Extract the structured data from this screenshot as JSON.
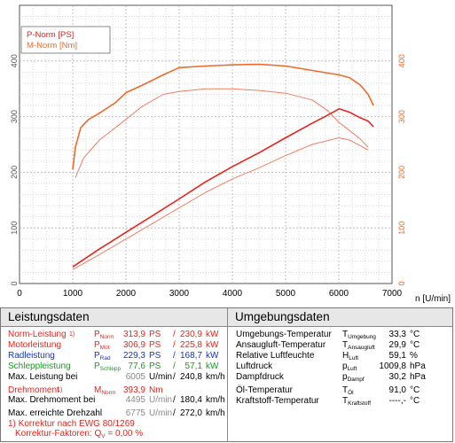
{
  "chart_data": {
    "type": "line",
    "legend": [
      "P-Norm [PS]",
      "M-Norm [Nm]"
    ],
    "legend_position": "top-left",
    "xlabel": "n [U/min]",
    "xlim": [
      0,
      7000
    ],
    "ylim": [
      0,
      500
    ],
    "xticks": [
      "0",
      "1000",
      "2000",
      "3000",
      "4000",
      "5000",
      "6000",
      "7000"
    ],
    "yticks": [
      "0",
      "100",
      "200",
      "300",
      "400"
    ],
    "grid": true,
    "colors": {
      "p_norm": "#e8231b",
      "m_norm": "#ef6a2a",
      "secondary": "#f27d62"
    },
    "series": [
      {
        "name": "P-Norm [PS]",
        "color": "#e8231b",
        "x": [
          1000,
          1500,
          2000,
          2500,
          3000,
          3500,
          4000,
          4500,
          5000,
          5500,
          5800,
          6005,
          6200,
          6400,
          6550,
          6650
        ],
        "y": [
          30,
          62,
          92,
          122,
          152,
          183,
          210,
          235,
          262,
          288,
          303,
          314,
          308,
          298,
          292,
          282
        ]
      },
      {
        "name": "M-Norm [Nm]",
        "color": "#ef6a2a",
        "x": [
          1000,
          1050,
          1150,
          1300,
          1500,
          1800,
          2000,
          2300,
          2700,
          3000,
          3500,
          4000,
          4500,
          5000,
          5500,
          6000,
          6200,
          6400,
          6550,
          6650
        ],
        "y": [
          205,
          245,
          280,
          295,
          306,
          325,
          343,
          356,
          375,
          388,
          391,
          393,
          394,
          391,
          383,
          375,
          370,
          357,
          340,
          320
        ]
      },
      {
        "x": [
          1000,
          1500,
          2000,
          2500,
          3000,
          3500,
          4000,
          4500,
          5000,
          5500,
          6000,
          6200,
          6400,
          6550
        ],
        "y": [
          25,
          52,
          80,
          108,
          136,
          164,
          188,
          208,
          230,
          250,
          262,
          258,
          248,
          240
        ]
      },
      {
        "x": [
          1050,
          1200,
          1500,
          1800,
          2000,
          2300,
          2700,
          3000,
          3500,
          4000,
          4500,
          5000,
          5500,
          5800,
          6000,
          6200,
          6400,
          6550
        ],
        "y": [
          190,
          225,
          258,
          280,
          295,
          318,
          340,
          345,
          350,
          350,
          347,
          342,
          330,
          310,
          290,
          275,
          260,
          245
        ]
      }
    ]
  },
  "left_panel": {
    "title": "Leistungsdaten",
    "rows": [
      {
        "label": "Norm-Leistung",
        "mark": "1)",
        "sym": "P",
        "sub": "Norm",
        "v1": "313,9",
        "u1": "PS",
        "v2": "230,9",
        "u2": "kW"
      },
      {
        "label": "Motorleistung",
        "sym": "P",
        "sub": "Mot",
        "v1": "306,9",
        "u1": "PS",
        "v2": "225,8",
        "u2": "kW"
      },
      {
        "label": "Radleistung",
        "sym": "P",
        "sub": "Rad",
        "v1": "229,3",
        "u1": "PS",
        "v2": "168,7",
        "u2": "kW"
      },
      {
        "label": "Schleppleistung",
        "sym": "P",
        "sub": "Schlepp",
        "v1": "77,6",
        "u1": "PS",
        "v2": "57,1",
        "u2": "kW"
      },
      {
        "label": "Max. Leistung bei",
        "v1": "6005",
        "u1": "U/min",
        "sep": "/",
        "v2": "240,8",
        "u2": "km/h"
      }
    ],
    "torque": {
      "label": "Drehmoment",
      "mark": "1)",
      "sym": "M",
      "sub": "Norm",
      "v1": "393,9",
      "u1": "Nm"
    },
    "torque_at": {
      "label": "Max. Drehmoment bei",
      "v1": "4495",
      "u1": "U/min",
      "sep": "/",
      "v2": "180,4",
      "u2": "km/h"
    },
    "max_rpm": {
      "label": "Max. erreichte Drehzahl",
      "v1": "6775",
      "u1": "U/min",
      "sep": "/",
      "v2": "272,0",
      "u2": "km/h"
    },
    "footnote1": "1) Korrektur nach EWG 80/1269",
    "footnote2_pre": "Korrektur-Faktoren: Q",
    "footnote2_sub": "V",
    "footnote2_post": " = 0,00 %"
  },
  "right_panel": {
    "title": "Umgebungsdaten",
    "rows": [
      {
        "label": "Umgebungs-Temperatur",
        "sym": "T",
        "sub": "Umgebung",
        "val": "33,3",
        "unit": "°C"
      },
      {
        "label": "Ansaugluft-Temperatur",
        "sym": "T",
        "sub": "Ansaugluft",
        "val": "29,9",
        "unit": "°C"
      },
      {
        "label": "Relative Luftfeuchte",
        "sym": "H",
        "sub": "Luft",
        "val": "59,1",
        "unit": "%"
      },
      {
        "label": "Luftdruck",
        "sym": "p",
        "sub": "Luft",
        "val": "1009,8",
        "unit": "hPa"
      },
      {
        "label": "Dampfdruck",
        "sym": "p",
        "sub": "Dampf",
        "val": "30,2",
        "unit": "hPa"
      },
      {
        "label": "Öl-Temperatur",
        "sym": "T",
        "sub": "Öl",
        "val": "91,0",
        "unit": "°C"
      },
      {
        "label": "Kraftstoff-Temperatur",
        "sym": "T",
        "sub": "Kraftstoff",
        "val": "----,-",
        "unit": "°C"
      }
    ]
  }
}
